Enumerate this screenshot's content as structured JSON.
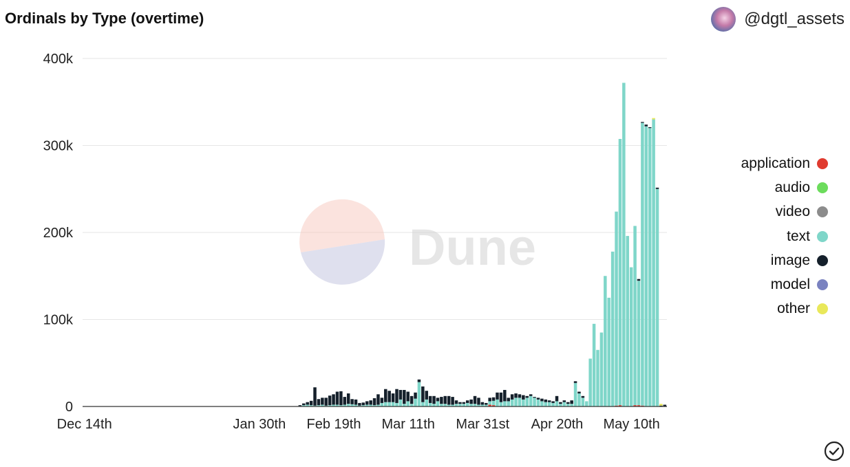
{
  "header": {
    "title": "Ordinals by Type (overtime)",
    "author": "@dgtl_assets"
  },
  "watermark": {
    "brand": "Dune"
  },
  "colors": {
    "application": "#e03b2f",
    "audio": "#6cdc5c",
    "video": "#8c8c8c",
    "text": "#7fd6c9",
    "image": "#15202b",
    "model": "#7a82c0",
    "other": "#e9e85a"
  },
  "legend": {
    "items": [
      {
        "label": "application",
        "color": "#e03b2f"
      },
      {
        "label": "audio",
        "color": "#6cdc5c"
      },
      {
        "label": "video",
        "color": "#8c8c8c"
      },
      {
        "label": "text",
        "color": "#7fd6c9"
      },
      {
        "label": "image",
        "color": "#15202b"
      },
      {
        "label": "model",
        "color": "#7a82c0"
      },
      {
        "label": "other",
        "color": "#e9e85a"
      }
    ]
  },
  "chart_data": {
    "type": "bar",
    "stacked": true,
    "title": "Ordinals by Type (overtime)",
    "x_start": "2022-12-14",
    "x_tick_labels": [
      "Dec 14th",
      "Jan 30th",
      "Feb 19th",
      "Mar 11th",
      "Mar 31st",
      "Apr 20th",
      "May 10th"
    ],
    "x_tick_dates": [
      "2022-12-14",
      "2023-01-30",
      "2023-02-19",
      "2023-03-11",
      "2023-03-31",
      "2023-04-20",
      "2023-05-10"
    ],
    "y_tick_labels": [
      "0",
      "100k",
      "200k",
      "300k",
      "400k"
    ],
    "y_ticks": [
      0,
      100000,
      200000,
      300000,
      400000
    ],
    "ylim": [
      0,
      400000
    ],
    "grid": true,
    "legend_position": "right",
    "series": [
      {
        "name": "application",
        "color": "#e03b2f",
        "values": [
          0,
          0,
          0,
          0,
          0,
          0,
          0,
          0,
          0,
          0,
          0,
          0,
          0,
          0,
          0,
          0,
          0,
          0,
          0,
          0,
          0,
          0,
          0,
          0,
          0,
          0,
          0,
          0,
          0,
          0,
          0,
          0,
          0,
          0,
          0,
          0,
          0,
          0,
          0,
          0,
          0,
          0,
          0,
          0,
          0,
          0,
          0,
          0,
          0,
          0,
          0,
          0,
          0,
          0,
          0,
          0,
          0,
          0,
          0,
          0,
          0,
          0,
          0,
          0,
          0,
          0,
          0,
          0,
          0,
          0,
          0,
          0,
          0,
          0,
          0,
          0,
          0,
          0,
          0,
          0,
          0,
          0,
          0,
          0,
          0,
          0,
          0,
          0,
          0,
          0,
          0,
          0,
          0,
          0,
          0,
          0,
          0,
          0,
          0,
          0,
          0,
          0,
          0,
          0,
          0,
          0,
          0,
          0,
          0,
          2000,
          1500,
          0,
          0,
          0,
          0,
          0,
          0,
          0,
          0,
          0,
          0,
          0,
          0,
          0,
          0,
          0,
          0,
          0,
          0,
          0,
          0,
          0,
          0,
          0,
          0,
          0,
          0,
          0,
          0,
          0,
          0,
          0,
          0,
          1000,
          1500,
          0,
          0,
          0,
          1500,
          1500,
          1000,
          0,
          0,
          0,
          0,
          0,
          0
        ]
      },
      {
        "name": "audio",
        "color": "#6cdc5c",
        "values": [
          0,
          0,
          0,
          0,
          0,
          0,
          0,
          0,
          0,
          0,
          0,
          0,
          0,
          0,
          0,
          0,
          0,
          0,
          0,
          0,
          0,
          0,
          0,
          0,
          0,
          0,
          0,
          0,
          0,
          0,
          0,
          0,
          0,
          0,
          0,
          0,
          0,
          0,
          0,
          0,
          0,
          0,
          0,
          0,
          0,
          0,
          0,
          0,
          0,
          0,
          0,
          0,
          0,
          0,
          0,
          0,
          0,
          0,
          0,
          0,
          0,
          0,
          0,
          0,
          0,
          0,
          0,
          0,
          0,
          0,
          0,
          0,
          0,
          0,
          0,
          0,
          0,
          0,
          0,
          0,
          0,
          0,
          0,
          0,
          0,
          0,
          0,
          0,
          0,
          0,
          0,
          0,
          0,
          0,
          0,
          0,
          0,
          0,
          0,
          0,
          0,
          0,
          0,
          0,
          0,
          0,
          0,
          0,
          0,
          0,
          0,
          0,
          0,
          0,
          0,
          0,
          0,
          0,
          0,
          0,
          0,
          0,
          0,
          0,
          0,
          0,
          0,
          0,
          0,
          0,
          0,
          0,
          0,
          0,
          0,
          0,
          0,
          0,
          0,
          0,
          0,
          0,
          0,
          0,
          0,
          0,
          0,
          0,
          0,
          0,
          0,
          0,
          0,
          0,
          0,
          0,
          0,
          0
        ]
      },
      {
        "name": "video",
        "color": "#8c8c8c",
        "values": [
          0,
          0,
          0,
          0,
          0,
          0,
          0,
          0,
          0,
          0,
          0,
          0,
          0,
          0,
          0,
          0,
          0,
          0,
          0,
          0,
          0,
          0,
          0,
          0,
          0,
          0,
          0,
          0,
          0,
          0,
          0,
          0,
          0,
          0,
          0,
          0,
          0,
          0,
          0,
          0,
          0,
          0,
          0,
          0,
          0,
          0,
          0,
          0,
          0,
          0,
          0,
          0,
          0,
          0,
          0,
          0,
          0,
          0,
          0,
          0,
          0,
          0,
          0,
          0,
          0,
          0,
          0,
          0,
          0,
          0,
          0,
          0,
          0,
          0,
          0,
          0,
          0,
          0,
          0,
          0,
          0,
          0,
          0,
          0,
          0,
          0,
          0,
          0,
          0,
          0,
          0,
          0,
          0,
          0,
          0,
          0,
          0,
          0,
          0,
          0,
          0,
          0,
          0,
          0,
          0,
          0,
          0,
          0,
          0,
          0,
          0,
          0,
          0,
          0,
          0,
          0,
          0,
          0,
          0,
          0,
          0,
          0,
          0,
          0,
          0,
          0,
          0,
          0,
          0,
          0,
          0,
          0,
          0,
          0,
          0,
          0,
          0,
          0,
          0,
          0,
          0,
          0,
          0,
          0,
          0,
          0,
          0,
          0,
          0,
          0,
          0,
          0,
          0,
          0,
          0,
          0,
          0,
          0
        ]
      },
      {
        "name": "text",
        "color": "#7fd6c9",
        "values": [
          0,
          0,
          0,
          0,
          0,
          0,
          0,
          0,
          0,
          0,
          0,
          0,
          0,
          0,
          0,
          0,
          0,
          0,
          0,
          0,
          0,
          0,
          0,
          0,
          0,
          0,
          0,
          0,
          0,
          0,
          0,
          0,
          0,
          0,
          0,
          0,
          0,
          0,
          0,
          0,
          0,
          0,
          0,
          0,
          0,
          0,
          0,
          0,
          0,
          0,
          0,
          0,
          0,
          0,
          0,
          0,
          0,
          0,
          500,
          1500,
          2000,
          1500,
          1000,
          1500,
          2000,
          1000,
          1500,
          2000,
          2000,
          1500,
          2000,
          3000,
          2500,
          2000,
          1000,
          1500,
          2000,
          2000,
          1500,
          2000,
          4000,
          5000,
          5000,
          5000,
          4000,
          8000,
          3000,
          6000,
          3000,
          9000,
          28000,
          5000,
          8000,
          4000,
          3000,
          6000,
          3000,
          3000,
          2000,
          2000,
          3000,
          3000,
          3000,
          4000,
          3000,
          3000,
          2000,
          2000,
          2000,
          4000,
          5000,
          8000,
          5000,
          6000,
          6000,
          8000,
          10000,
          10000,
          8000,
          10000,
          12000,
          10000,
          8000,
          6000,
          5000,
          5000,
          4000,
          6000,
          3000,
          5000,
          3000,
          3000,
          27000,
          15000,
          10000,
          6000,
          55000,
          95000,
          65000,
          85000,
          150000,
          125000,
          178000,
          223000,
          306000,
          372000,
          196000,
          160000,
          206000,
          143000,
          325000,
          322000,
          320000,
          330000,
          250000
        ]
      },
      {
        "name": "image",
        "color": "#15202b",
        "values": [
          0,
          0,
          0,
          0,
          0,
          0,
          0,
          0,
          0,
          0,
          0,
          0,
          0,
          0,
          0,
          0,
          0,
          0,
          0,
          0,
          0,
          0,
          0,
          0,
          0,
          0,
          0,
          0,
          0,
          0,
          0,
          0,
          0,
          0,
          0,
          0,
          0,
          0,
          0,
          0,
          0,
          0,
          0,
          0,
          0,
          0,
          0,
          0,
          0,
          0,
          0,
          0,
          0,
          0,
          0,
          0,
          0,
          0,
          1000,
          2000,
          3000,
          5000,
          21000,
          7000,
          8000,
          9000,
          11000,
          12000,
          15000,
          16000,
          9000,
          12000,
          6000,
          6000,
          3000,
          3000,
          4000,
          5000,
          8000,
          12000,
          6000,
          15000,
          13000,
          10000,
          16000,
          11000,
          16000,
          11000,
          9000,
          7000,
          3000,
          18000,
          10000,
          8000,
          9000,
          4000,
          8000,
          9000,
          10000,
          9000,
          4000,
          2000,
          2000,
          3000,
          5000,
          9000,
          8000,
          3000,
          2000,
          4000,
          4000,
          8000,
          11000,
          13000,
          4000,
          6000,
          5000,
          4000,
          5000,
          2000,
          2000,
          1000,
          2000,
          3000,
          3000,
          2000,
          2000,
          6000,
          2000,
          2000,
          2000,
          4000,
          2000,
          2000,
          2000,
          0,
          0,
          0,
          0,
          0,
          0,
          0,
          0,
          0,
          0,
          0,
          0,
          0,
          0,
          2000,
          1000,
          2000,
          1000,
          0,
          1500,
          1000,
          2000,
          2000,
          1000,
          1500,
          1000,
          1000,
          3000,
          2000,
          2000,
          1000,
          12000,
          1000
        ]
      },
      {
        "name": "model",
        "color": "#7a82c0",
        "values": [
          0,
          0,
          0,
          0,
          0,
          0,
          0,
          0,
          0,
          0,
          0,
          0,
          0,
          0,
          0,
          0,
          0,
          0,
          0,
          0,
          0,
          0,
          0,
          0,
          0,
          0,
          0,
          0,
          0,
          0,
          0,
          0,
          0,
          0,
          0,
          0,
          0,
          0,
          0,
          0,
          0,
          0,
          0,
          0,
          0,
          0,
          0,
          0,
          0,
          0,
          0,
          0,
          0,
          0,
          0,
          0,
          0,
          0,
          0,
          0,
          0,
          0,
          0,
          0,
          0,
          0,
          0,
          0,
          0,
          0,
          0,
          0,
          0,
          0,
          0,
          0,
          0,
          0,
          0,
          0,
          0,
          0,
          0,
          0,
          0,
          0,
          0,
          0,
          0,
          0,
          0,
          0,
          0,
          0,
          0,
          0,
          0,
          0,
          0,
          0,
          0,
          0,
          0,
          0,
          0,
          0,
          0,
          0,
          0,
          0,
          0,
          0,
          0,
          0,
          0,
          0,
          0,
          0,
          0,
          0,
          0,
          0,
          0,
          0,
          0,
          0,
          0,
          0,
          0,
          0,
          0,
          0,
          0,
          0,
          0,
          0,
          0,
          0,
          0,
          0,
          0,
          0,
          0,
          0,
          0,
          0,
          0,
          0,
          0,
          0,
          0,
          0,
          0,
          0,
          0,
          0,
          0,
          0
        ]
      },
      {
        "name": "other",
        "color": "#e9e85a",
        "values": [
          0,
          0,
          0,
          0,
          0,
          0,
          0,
          0,
          0,
          0,
          0,
          0,
          0,
          0,
          0,
          0,
          0,
          0,
          0,
          0,
          0,
          0,
          0,
          0,
          0,
          0,
          0,
          0,
          0,
          0,
          0,
          0,
          0,
          0,
          0,
          0,
          0,
          0,
          0,
          0,
          0,
          0,
          0,
          0,
          0,
          0,
          0,
          0,
          0,
          0,
          0,
          0,
          0,
          0,
          0,
          0,
          0,
          0,
          0,
          0,
          0,
          0,
          0,
          0,
          0,
          0,
          0,
          0,
          0,
          0,
          0,
          0,
          0,
          0,
          0,
          0,
          0,
          0,
          0,
          0,
          0,
          0,
          0,
          0,
          0,
          0,
          0,
          0,
          0,
          0,
          0,
          0,
          0,
          0,
          0,
          0,
          0,
          0,
          0,
          0,
          0,
          0,
          0,
          0,
          0,
          0,
          0,
          0,
          0,
          0,
          0,
          0,
          0,
          0,
          0,
          0,
          0,
          0,
          0,
          0,
          0,
          0,
          0,
          0,
          0,
          0,
          0,
          0,
          0,
          0,
          0,
          0,
          0,
          0,
          0,
          0,
          0,
          0,
          0,
          0,
          0,
          0,
          0,
          0,
          0,
          0,
          0,
          0,
          0,
          0,
          0,
          0,
          0,
          1500,
          0,
          2000,
          0,
          0
        ]
      }
    ]
  }
}
